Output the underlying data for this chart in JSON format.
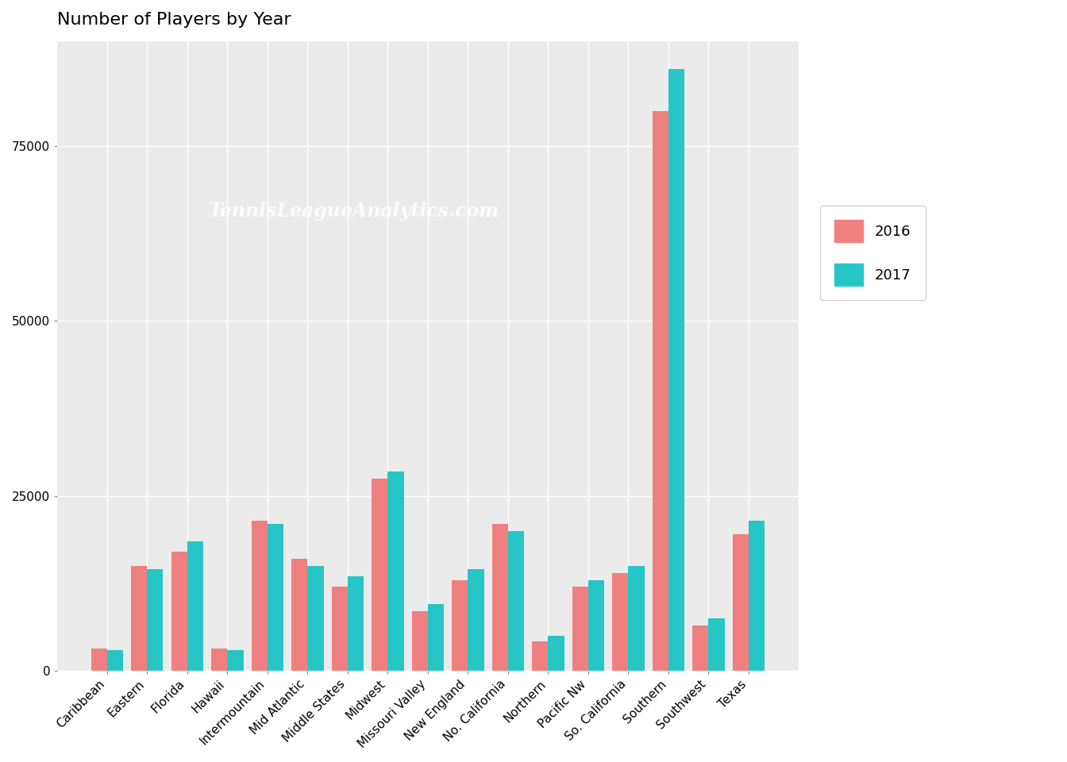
{
  "title": "Number of Players by Year",
  "categories": [
    "Caribbean",
    "Eastern",
    "Florida",
    "Hawaii",
    "Intermountain",
    "Mid Atlantic",
    "Middle States",
    "Midwest",
    "Missouri Valley",
    "New England",
    "No. California",
    "Northern",
    "Pacific Nw",
    "So. California",
    "Southern",
    "Southwest",
    "Texas"
  ],
  "values_2016": [
    3200,
    15000,
    17000,
    3200,
    21500,
    16000,
    12000,
    27500,
    8500,
    13000,
    21000,
    4200,
    12000,
    14000,
    80000,
    6500,
    19500
  ],
  "values_2017": [
    3000,
    14500,
    18500,
    3000,
    21000,
    15000,
    13500,
    28500,
    9500,
    14500,
    20000,
    5000,
    13000,
    15000,
    86000,
    7500,
    21500
  ],
  "color_2016": "#F08080",
  "color_2017": "#26C6C6",
  "legend_labels": [
    "2016",
    "2017"
  ],
  "watermark": "TennisLeagueAnalytics.com",
  "plot_bg_color": "#EBEBEB",
  "fig_bg_color": "#FFFFFF",
  "ylim": [
    0,
    90000
  ],
  "yticks": [
    0,
    25000,
    50000,
    75000
  ],
  "bar_width": 0.4,
  "figsize": [
    13.44,
    9.6
  ],
  "dpi": 100
}
